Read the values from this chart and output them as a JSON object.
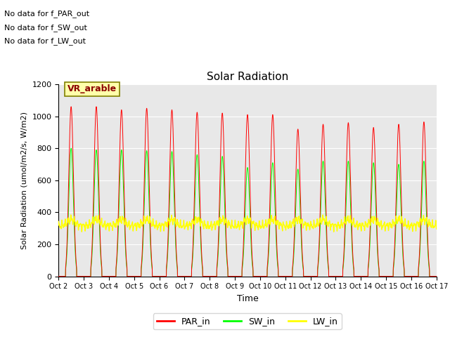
{
  "title": "Solar Radiation",
  "ylabel": "Solar Radiation (umol/m2/s, W/m2)",
  "xlabel": "Time",
  "ylim": [
    0,
    1200
  ],
  "yticks": [
    0,
    200,
    400,
    600,
    800,
    1000,
    1200
  ],
  "bg_color": "#e8e8e8",
  "annotations": [
    "No data for f_PAR_out",
    "No data for f_SW_out",
    "No data for f_LW_out"
  ],
  "vr_label": "VR_arable",
  "legend_entries": [
    "PAR_in",
    "SW_in",
    "LW_in"
  ],
  "legend_colors": [
    "red",
    "lime",
    "yellow"
  ],
  "n_days": 15,
  "day_start": 2,
  "PAR_peaks": [
    1060,
    1060,
    1040,
    1050,
    1040,
    1025,
    1020,
    1010,
    1010,
    920,
    950,
    960,
    930,
    950,
    965
  ],
  "SW_peaks": [
    800,
    790,
    790,
    785,
    780,
    760,
    750,
    680,
    710,
    670,
    720,
    720,
    710,
    700,
    720
  ],
  "LW_base": 315,
  "LW_day_bump": 40,
  "LW_noise_amp": 15
}
